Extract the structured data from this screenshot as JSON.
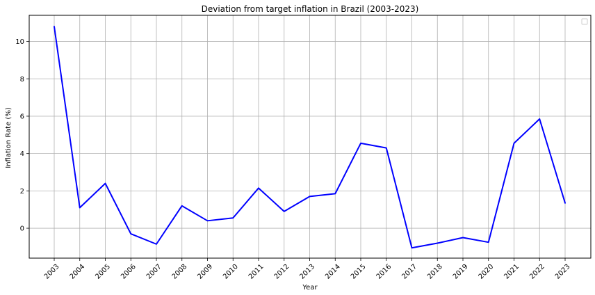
{
  "chart_data": {
    "type": "line",
    "title": "Deviation from target inflation in Brazil (2003-2023)",
    "xlabel": "Year",
    "ylabel": "Inflation Rate (%)",
    "x": [
      "2003",
      "2004",
      "2005",
      "2006",
      "2007",
      "2008",
      "2009",
      "2010",
      "2011",
      "2012",
      "2013",
      "2014",
      "2015",
      "2016",
      "2017",
      "2018",
      "2019",
      "2020",
      "2021",
      "2022",
      "2023"
    ],
    "series": [
      {
        "values": [
          10.8,
          1.1,
          2.4,
          -0.3,
          -0.85,
          1.2,
          0.4,
          0.55,
          2.15,
          0.9,
          1.7,
          1.85,
          4.55,
          4.3,
          -1.05,
          -0.8,
          -0.5,
          -0.75,
          4.55,
          5.85,
          1.35
        ],
        "color": "#0000ff"
      }
    ],
    "yticks": [
      0,
      2,
      4,
      6,
      8,
      10
    ],
    "ylim": [
      -1.6,
      11.4
    ],
    "grid": true,
    "legend": "top-right",
    "x_tick_rotation": 45
  }
}
